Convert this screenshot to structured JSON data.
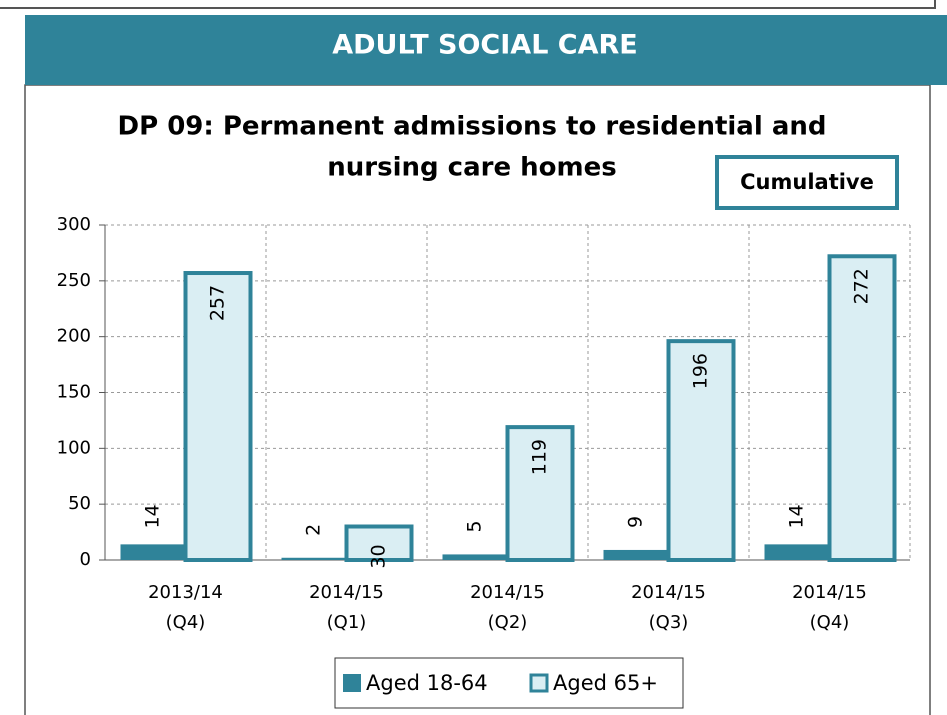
{
  "header": "ADULT SOCIAL CARE",
  "chart_data": {
    "type": "bar",
    "title": [
      "DP 09: Permanent admissions to residential and",
      "nursing care homes"
    ],
    "annotation": "Cumulative",
    "categories": [
      [
        "2013/14",
        "(Q4)"
      ],
      [
        "2014/15",
        "(Q1)"
      ],
      [
        "2014/15",
        "(Q2)"
      ],
      [
        "2014/15",
        "(Q3)"
      ],
      [
        "2014/15",
        "(Q4)"
      ]
    ],
    "series": [
      {
        "name": "Aged 18-64",
        "color": "#2f8399",
        "values": [
          14,
          2,
          5,
          9,
          14
        ]
      },
      {
        "name": "Aged 65+",
        "color": "#daeef3",
        "values": [
          257,
          30,
          119,
          196,
          272
        ]
      }
    ],
    "ylim": [
      0,
      300
    ],
    "yticks": [
      0,
      50,
      100,
      150,
      200,
      250,
      300
    ],
    "grid": true,
    "legend": "bottom"
  }
}
